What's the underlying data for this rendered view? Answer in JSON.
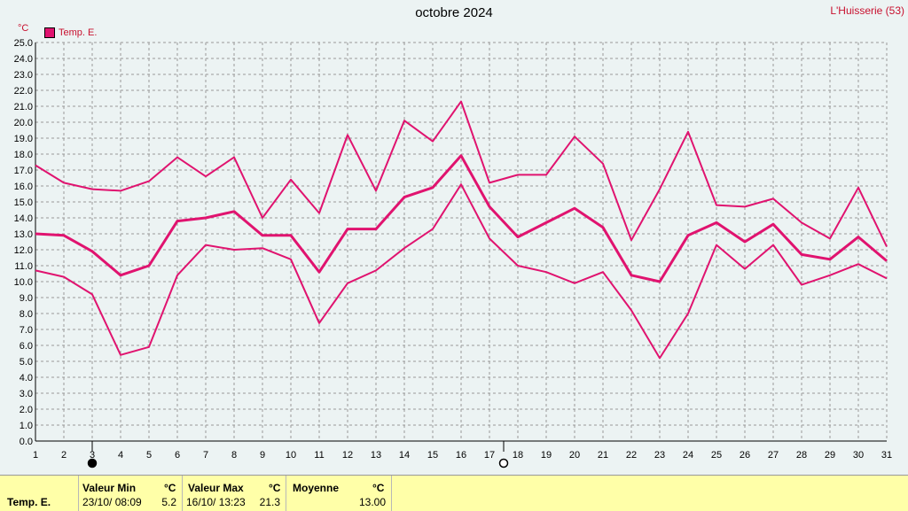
{
  "header": {
    "title": "octobre 2024",
    "station": "L'Huisserie (53)",
    "unit": "°C"
  },
  "legend": {
    "label": "Temp. E.",
    "color": "#e0136f"
  },
  "chart_data": {
    "type": "line",
    "title": "octobre 2024",
    "ylabel": "°C",
    "ylim": [
      0,
      25
    ],
    "ystep": 1,
    "x": [
      1,
      2,
      3,
      4,
      5,
      6,
      7,
      8,
      9,
      10,
      11,
      12,
      13,
      14,
      15,
      16,
      17,
      18,
      19,
      20,
      21,
      22,
      23,
      24,
      25,
      26,
      27,
      28,
      29,
      30,
      31
    ],
    "grid": true,
    "legend": "top-left",
    "series": [
      {
        "name": "max",
        "values": [
          17.3,
          16.2,
          15.8,
          15.7,
          16.3,
          17.8,
          16.6,
          17.8,
          14.0,
          16.4,
          14.3,
          19.2,
          15.7,
          20.1,
          18.8,
          21.3,
          16.2,
          16.7,
          16.7,
          19.1,
          17.4,
          12.6,
          15.8,
          19.4,
          14.8,
          14.7,
          15.2,
          13.7,
          12.7,
          15.9,
          12.2
        ]
      },
      {
        "name": "moyenne",
        "values": [
          13.0,
          12.9,
          11.9,
          10.4,
          11.0,
          13.8,
          14.0,
          14.4,
          12.9,
          12.9,
          10.6,
          13.3,
          13.3,
          15.3,
          15.9,
          17.9,
          14.7,
          12.8,
          13.7,
          14.6,
          13.4,
          10.4,
          10.0,
          12.9,
          13.7,
          12.5,
          13.6,
          11.7,
          11.4,
          12.8,
          11.3
        ]
      },
      {
        "name": "min",
        "values": [
          10.7,
          10.3,
          9.2,
          5.4,
          5.9,
          10.4,
          12.3,
          12.0,
          12.1,
          11.4,
          7.4,
          9.9,
          10.7,
          12.1,
          13.3,
          16.1,
          12.7,
          11.0,
          10.6,
          9.9,
          10.6,
          8.2,
          5.2,
          8.0,
          12.3,
          10.8,
          12.3,
          9.8,
          10.4,
          11.1,
          10.2
        ]
      }
    ],
    "markers": [
      {
        "day": 3,
        "symbol": "filled-circle"
      },
      {
        "day": 17.5,
        "symbol": "open-circle"
      }
    ]
  },
  "stats": {
    "row_label": "Temp. E.",
    "min": {
      "header": "Valeur Min",
      "unit": "°C",
      "datetime": "23/10/  08:09",
      "value": "5.2"
    },
    "max": {
      "header": "Valeur Max",
      "unit": "°C",
      "datetime": "16/10/  13:23",
      "value": "21.3"
    },
    "avg": {
      "header": "Moyenne",
      "unit": "°C",
      "value": "13.00"
    }
  }
}
